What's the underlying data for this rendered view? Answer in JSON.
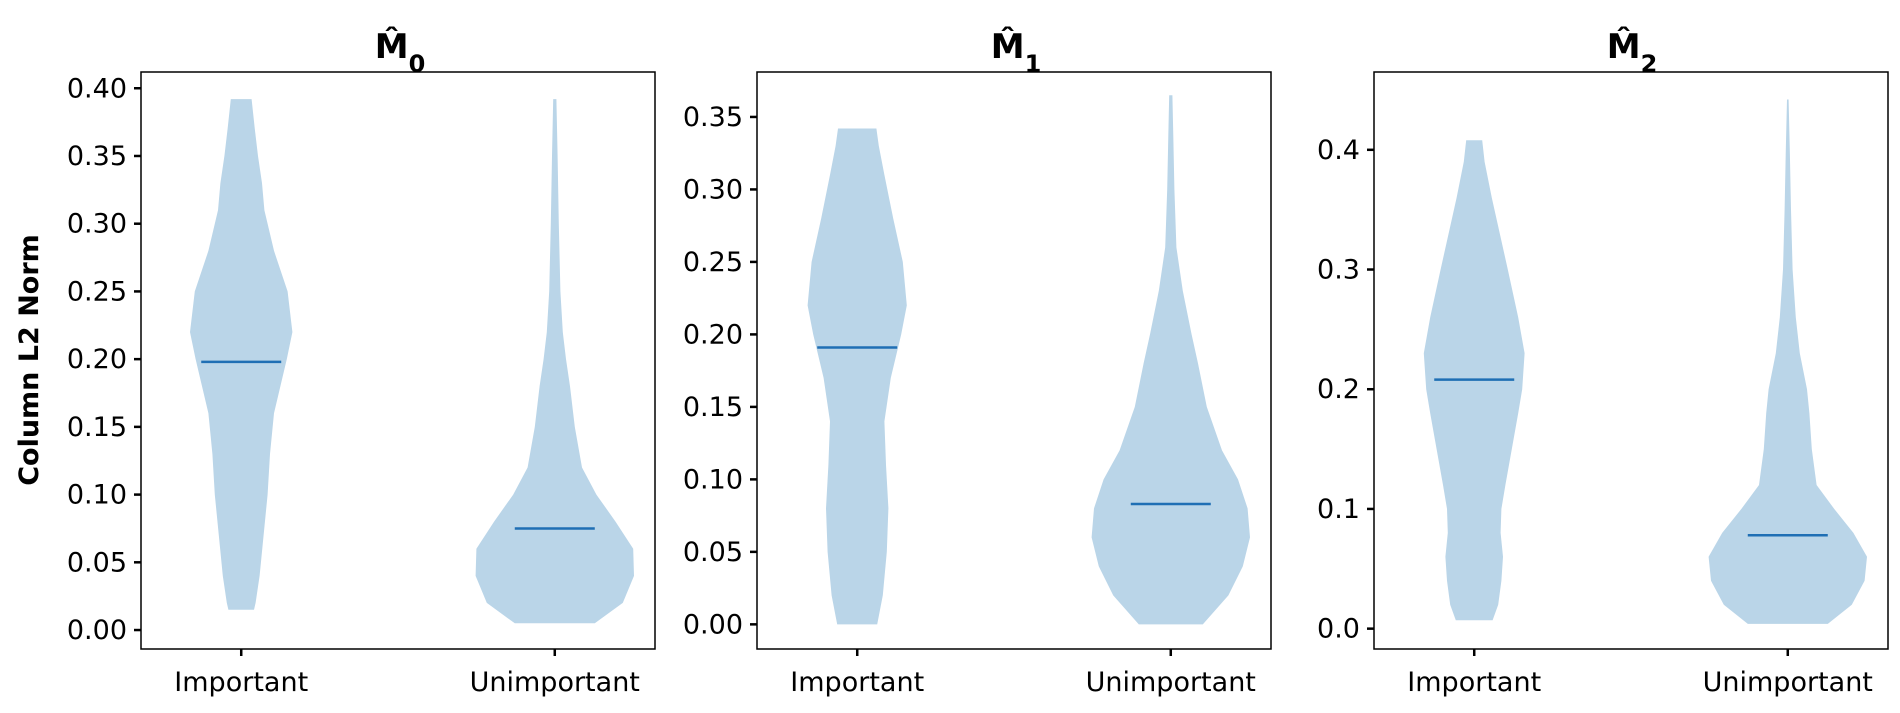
{
  "chart_data": [
    {
      "type": "violin",
      "title": "M̂",
      "title_subscript": "0",
      "ylabel": "Column L2 Norm",
      "categories": [
        "Important",
        "Unimportant"
      ],
      "ylim": [
        -0.014,
        0.412
      ],
      "yticks": [
        0.0,
        0.05,
        0.1,
        0.15,
        0.2,
        0.25,
        0.3,
        0.35,
        0.4
      ],
      "ytick_labels": [
        "0.00",
        "0.05",
        "0.10",
        "0.15",
        "0.20",
        "0.25",
        "0.30",
        "0.35",
        "0.40"
      ],
      "fill_color": "#bad5e8",
      "median_color": "#1f6fb4",
      "violins": [
        {
          "category": "Important",
          "min": 0.015,
          "max": 0.392,
          "median": 0.198,
          "profile": [
            [
              0.015,
              0.16
            ],
            [
              0.02,
              0.18
            ],
            [
              0.04,
              0.23
            ],
            [
              0.07,
              0.28
            ],
            [
              0.1,
              0.33
            ],
            [
              0.13,
              0.36
            ],
            [
              0.16,
              0.41
            ],
            [
              0.2,
              0.57
            ],
            [
              0.22,
              0.64
            ],
            [
              0.25,
              0.58
            ],
            [
              0.28,
              0.41
            ],
            [
              0.31,
              0.29
            ],
            [
              0.33,
              0.26
            ],
            [
              0.35,
              0.21
            ],
            [
              0.37,
              0.17
            ],
            [
              0.392,
              0.13
            ]
          ]
        },
        {
          "category": "Unimportant",
          "min": 0.005,
          "max": 0.392,
          "median": 0.075,
          "profile": [
            [
              0.005,
              0.5
            ],
            [
              0.02,
              0.85
            ],
            [
              0.04,
              0.99
            ],
            [
              0.06,
              0.98
            ],
            [
              0.08,
              0.76
            ],
            [
              0.1,
              0.52
            ],
            [
              0.12,
              0.34
            ],
            [
              0.15,
              0.25
            ],
            [
              0.18,
              0.19
            ],
            [
              0.2,
              0.14
            ],
            [
              0.22,
              0.1
            ],
            [
              0.25,
              0.07
            ],
            [
              0.3,
              0.05
            ],
            [
              0.35,
              0.035
            ],
            [
              0.392,
              0.02
            ]
          ]
        }
      ]
    },
    {
      "type": "violin",
      "title": "M̂",
      "title_subscript": "1",
      "ylabel": "",
      "categories": [
        "Important",
        "Unimportant"
      ],
      "ylim": [
        -0.017,
        0.381
      ],
      "yticks": [
        0.0,
        0.05,
        0.1,
        0.15,
        0.2,
        0.25,
        0.3,
        0.35
      ],
      "ytick_labels": [
        "0.00",
        "0.05",
        "0.10",
        "0.15",
        "0.20",
        "0.25",
        "0.30",
        "0.35"
      ],
      "fill_color": "#bad5e8",
      "median_color": "#1f6fb4",
      "violins": [
        {
          "category": "Important",
          "min": 0.0,
          "max": 0.342,
          "median": 0.191,
          "profile": [
            [
              0.0,
              0.25
            ],
            [
              0.02,
              0.32
            ],
            [
              0.05,
              0.37
            ],
            [
              0.08,
              0.39
            ],
            [
              0.11,
              0.36
            ],
            [
              0.14,
              0.34
            ],
            [
              0.17,
              0.42
            ],
            [
              0.2,
              0.55
            ],
            [
              0.22,
              0.62
            ],
            [
              0.25,
              0.57
            ],
            [
              0.28,
              0.45
            ],
            [
              0.31,
              0.34
            ],
            [
              0.33,
              0.27
            ],
            [
              0.342,
              0.24
            ]
          ]
        },
        {
          "category": "Unimportant",
          "min": 0.0,
          "max": 0.365,
          "median": 0.083,
          "profile": [
            [
              0.0,
              0.4
            ],
            [
              0.02,
              0.72
            ],
            [
              0.04,
              0.9
            ],
            [
              0.06,
              0.99
            ],
            [
              0.08,
              0.96
            ],
            [
              0.1,
              0.84
            ],
            [
              0.12,
              0.64
            ],
            [
              0.15,
              0.45
            ],
            [
              0.18,
              0.34
            ],
            [
              0.2,
              0.26
            ],
            [
              0.23,
              0.15
            ],
            [
              0.26,
              0.07
            ],
            [
              0.3,
              0.045
            ],
            [
              0.34,
              0.03
            ],
            [
              0.365,
              0.02
            ]
          ]
        }
      ]
    },
    {
      "type": "violin",
      "title": "M̂",
      "title_subscript": "2",
      "ylabel": "",
      "categories": [
        "Important",
        "Unimportant"
      ],
      "ylim": [
        -0.017,
        0.465
      ],
      "yticks": [
        0.0,
        0.1,
        0.2,
        0.3,
        0.4
      ],
      "ytick_labels": [
        "0.0",
        "0.1",
        "0.2",
        "0.3",
        "0.4"
      ],
      "fill_color": "#bad5e8",
      "median_color": "#1f6fb4",
      "violins": [
        {
          "category": "Important",
          "min": 0.007,
          "max": 0.408,
          "median": 0.208,
          "profile": [
            [
              0.007,
              0.23
            ],
            [
              0.02,
              0.3
            ],
            [
              0.04,
              0.34
            ],
            [
              0.06,
              0.36
            ],
            [
              0.08,
              0.33
            ],
            [
              0.1,
              0.34
            ],
            [
              0.12,
              0.39
            ],
            [
              0.15,
              0.47
            ],
            [
              0.18,
              0.55
            ],
            [
              0.2,
              0.6
            ],
            [
              0.23,
              0.63
            ],
            [
              0.26,
              0.55
            ],
            [
              0.3,
              0.42
            ],
            [
              0.33,
              0.32
            ],
            [
              0.36,
              0.22
            ],
            [
              0.39,
              0.13
            ],
            [
              0.408,
              0.1
            ]
          ]
        },
        {
          "category": "Unimportant",
          "min": 0.004,
          "max": 0.442,
          "median": 0.078,
          "profile": [
            [
              0.004,
              0.5
            ],
            [
              0.02,
              0.8
            ],
            [
              0.04,
              0.96
            ],
            [
              0.06,
              0.99
            ],
            [
              0.08,
              0.82
            ],
            [
              0.1,
              0.58
            ],
            [
              0.12,
              0.36
            ],
            [
              0.15,
              0.3
            ],
            [
              0.18,
              0.27
            ],
            [
              0.2,
              0.24
            ],
            [
              0.23,
              0.15
            ],
            [
              0.26,
              0.1
            ],
            [
              0.3,
              0.06
            ],
            [
              0.35,
              0.04
            ],
            [
              0.4,
              0.025
            ],
            [
              0.442,
              0.01
            ]
          ]
        }
      ]
    }
  ]
}
